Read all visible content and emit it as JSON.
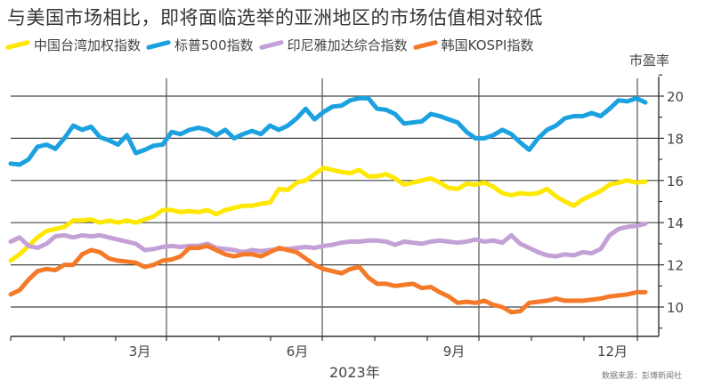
{
  "chart_data": {
    "type": "line",
    "title": "与美国市场相比，即将面临选举的亚洲地区的市场估值相对较低",
    "xlabel": "2023年",
    "ylabel": "市盈率",
    "source": "数据来源：彭博新闻社",
    "ylim": [
      9,
      21
    ],
    "yticks": [
      10,
      12,
      14,
      16,
      18,
      20
    ],
    "ytick_labels": [
      "10",
      "12",
      "14",
      "16",
      "18",
      "20"
    ],
    "xtick_labels": [
      {
        "label": "3月",
        "month_pos": 2.5
      },
      {
        "label": "6月",
        "month_pos": 5.5
      },
      {
        "label": "9月",
        "month_pos": 8.5
      },
      {
        "label": "12月",
        "month_pos": 11.5
      }
    ],
    "x_range_months": [
      0,
      12.2
    ],
    "grid": true,
    "legend_position": "top",
    "x": [
      0.0,
      0.17,
      0.34,
      0.51,
      0.68,
      0.85,
      1.02,
      1.19,
      1.36,
      1.53,
      1.7,
      1.87,
      2.04,
      2.21,
      2.38,
      2.55,
      2.72,
      2.89,
      3.06,
      3.23,
      3.4,
      3.57,
      3.74,
      3.91,
      4.08,
      4.25,
      4.42,
      4.59,
      4.76,
      4.93,
      5.1,
      5.27,
      5.44,
      5.61,
      5.78,
      5.95,
      6.12,
      6.29,
      6.46,
      6.63,
      6.8,
      6.97,
      7.14,
      7.31,
      7.48,
      7.65,
      7.82,
      7.99,
      8.16,
      8.33,
      8.5,
      8.67,
      8.84,
      9.01,
      9.18,
      9.35,
      9.52,
      9.69,
      9.86,
      10.03,
      10.2,
      10.37,
      10.54,
      10.71,
      10.88,
      11.05,
      11.22,
      11.39,
      11.56,
      11.73,
      11.9,
      12.07
    ],
    "series": [
      {
        "name": "中国台湾加权指数",
        "color": "#ffe800",
        "values": [
          12.2,
          12.5,
          12.9,
          13.3,
          13.6,
          13.7,
          13.8,
          14.1,
          14.1,
          14.15,
          14.0,
          14.1,
          14.0,
          14.1,
          14.0,
          14.15,
          14.3,
          14.6,
          14.6,
          14.5,
          14.55,
          14.5,
          14.6,
          14.4,
          14.6,
          14.7,
          14.8,
          14.8,
          14.9,
          14.95,
          15.6,
          15.55,
          15.9,
          16.0,
          16.3,
          16.6,
          16.5,
          16.4,
          16.35,
          16.5,
          16.2,
          16.2,
          16.3,
          16.1,
          15.8,
          15.9,
          16.0,
          16.1,
          15.9,
          15.65,
          15.6,
          15.85,
          15.8,
          15.9,
          15.7,
          15.4,
          15.3,
          15.4,
          15.35,
          15.4,
          15.6,
          15.25,
          15.0,
          14.8,
          15.1,
          15.3,
          15.5,
          15.8,
          15.9,
          16.0,
          15.9,
          15.95
        ]
      },
      {
        "name": "标普500指数",
        "color": "#1ca1e0",
        "values": [
          16.8,
          16.75,
          17.0,
          17.6,
          17.7,
          17.5,
          18.0,
          18.6,
          18.4,
          18.55,
          18.05,
          17.9,
          17.7,
          18.15,
          17.3,
          17.45,
          17.65,
          17.7,
          18.3,
          18.2,
          18.4,
          18.5,
          18.4,
          18.15,
          18.4,
          18.0,
          18.2,
          18.35,
          18.2,
          18.6,
          18.4,
          18.6,
          18.95,
          19.4,
          18.9,
          19.25,
          19.5,
          19.55,
          19.8,
          19.9,
          19.9,
          19.4,
          19.35,
          19.15,
          18.7,
          18.75,
          18.8,
          19.15,
          19.05,
          18.9,
          18.75,
          18.3,
          18.0,
          18.0,
          18.15,
          18.4,
          18.2,
          17.8,
          17.45,
          18.0,
          18.4,
          18.6,
          18.95,
          19.05,
          19.05,
          19.2,
          19.05,
          19.4,
          19.8,
          19.75,
          19.9,
          19.7
        ]
      },
      {
        "name": "印尼雅加达综合指数",
        "color": "#c3a0d6",
        "values": [
          13.1,
          13.3,
          12.9,
          12.8,
          13.0,
          13.35,
          13.4,
          13.3,
          13.4,
          13.35,
          13.4,
          13.3,
          13.2,
          13.1,
          13.0,
          12.7,
          12.75,
          12.85,
          12.9,
          12.85,
          12.9,
          12.9,
          13.0,
          12.8,
          12.75,
          12.7,
          12.6,
          12.7,
          12.65,
          12.7,
          12.75,
          12.75,
          12.8,
          12.85,
          12.8,
          12.9,
          12.95,
          13.05,
          13.1,
          13.1,
          13.15,
          13.15,
          13.1,
          12.95,
          13.1,
          13.05,
          13.0,
          13.1,
          13.15,
          13.1,
          13.05,
          13.1,
          13.2,
          13.1,
          13.15,
          13.05,
          13.4,
          13.0,
          12.8,
          12.6,
          12.45,
          12.4,
          12.5,
          12.45,
          12.6,
          12.55,
          12.75,
          13.4,
          13.7,
          13.8,
          13.85,
          13.95
        ]
      },
      {
        "name": "韩国KOSPI指数",
        "color": "#f47a2a",
        "values": [
          10.6,
          10.8,
          11.3,
          11.7,
          11.8,
          11.75,
          12.0,
          12.0,
          12.5,
          12.7,
          12.6,
          12.3,
          12.2,
          12.15,
          12.1,
          11.9,
          12.0,
          12.2,
          12.25,
          12.4,
          12.8,
          12.8,
          12.9,
          12.7,
          12.5,
          12.4,
          12.5,
          12.5,
          12.4,
          12.6,
          12.8,
          12.7,
          12.6,
          12.3,
          12.0,
          11.8,
          11.7,
          11.6,
          11.8,
          11.9,
          11.4,
          11.1,
          11.1,
          11.0,
          11.05,
          11.1,
          10.9,
          10.95,
          10.7,
          10.5,
          10.2,
          10.25,
          10.2,
          10.3,
          10.1,
          10.0,
          9.75,
          9.8,
          10.2,
          10.25,
          10.3,
          10.4,
          10.3,
          10.3,
          10.3,
          10.35,
          10.4,
          10.5,
          10.55,
          10.6,
          10.7,
          10.7
        ]
      }
    ]
  }
}
